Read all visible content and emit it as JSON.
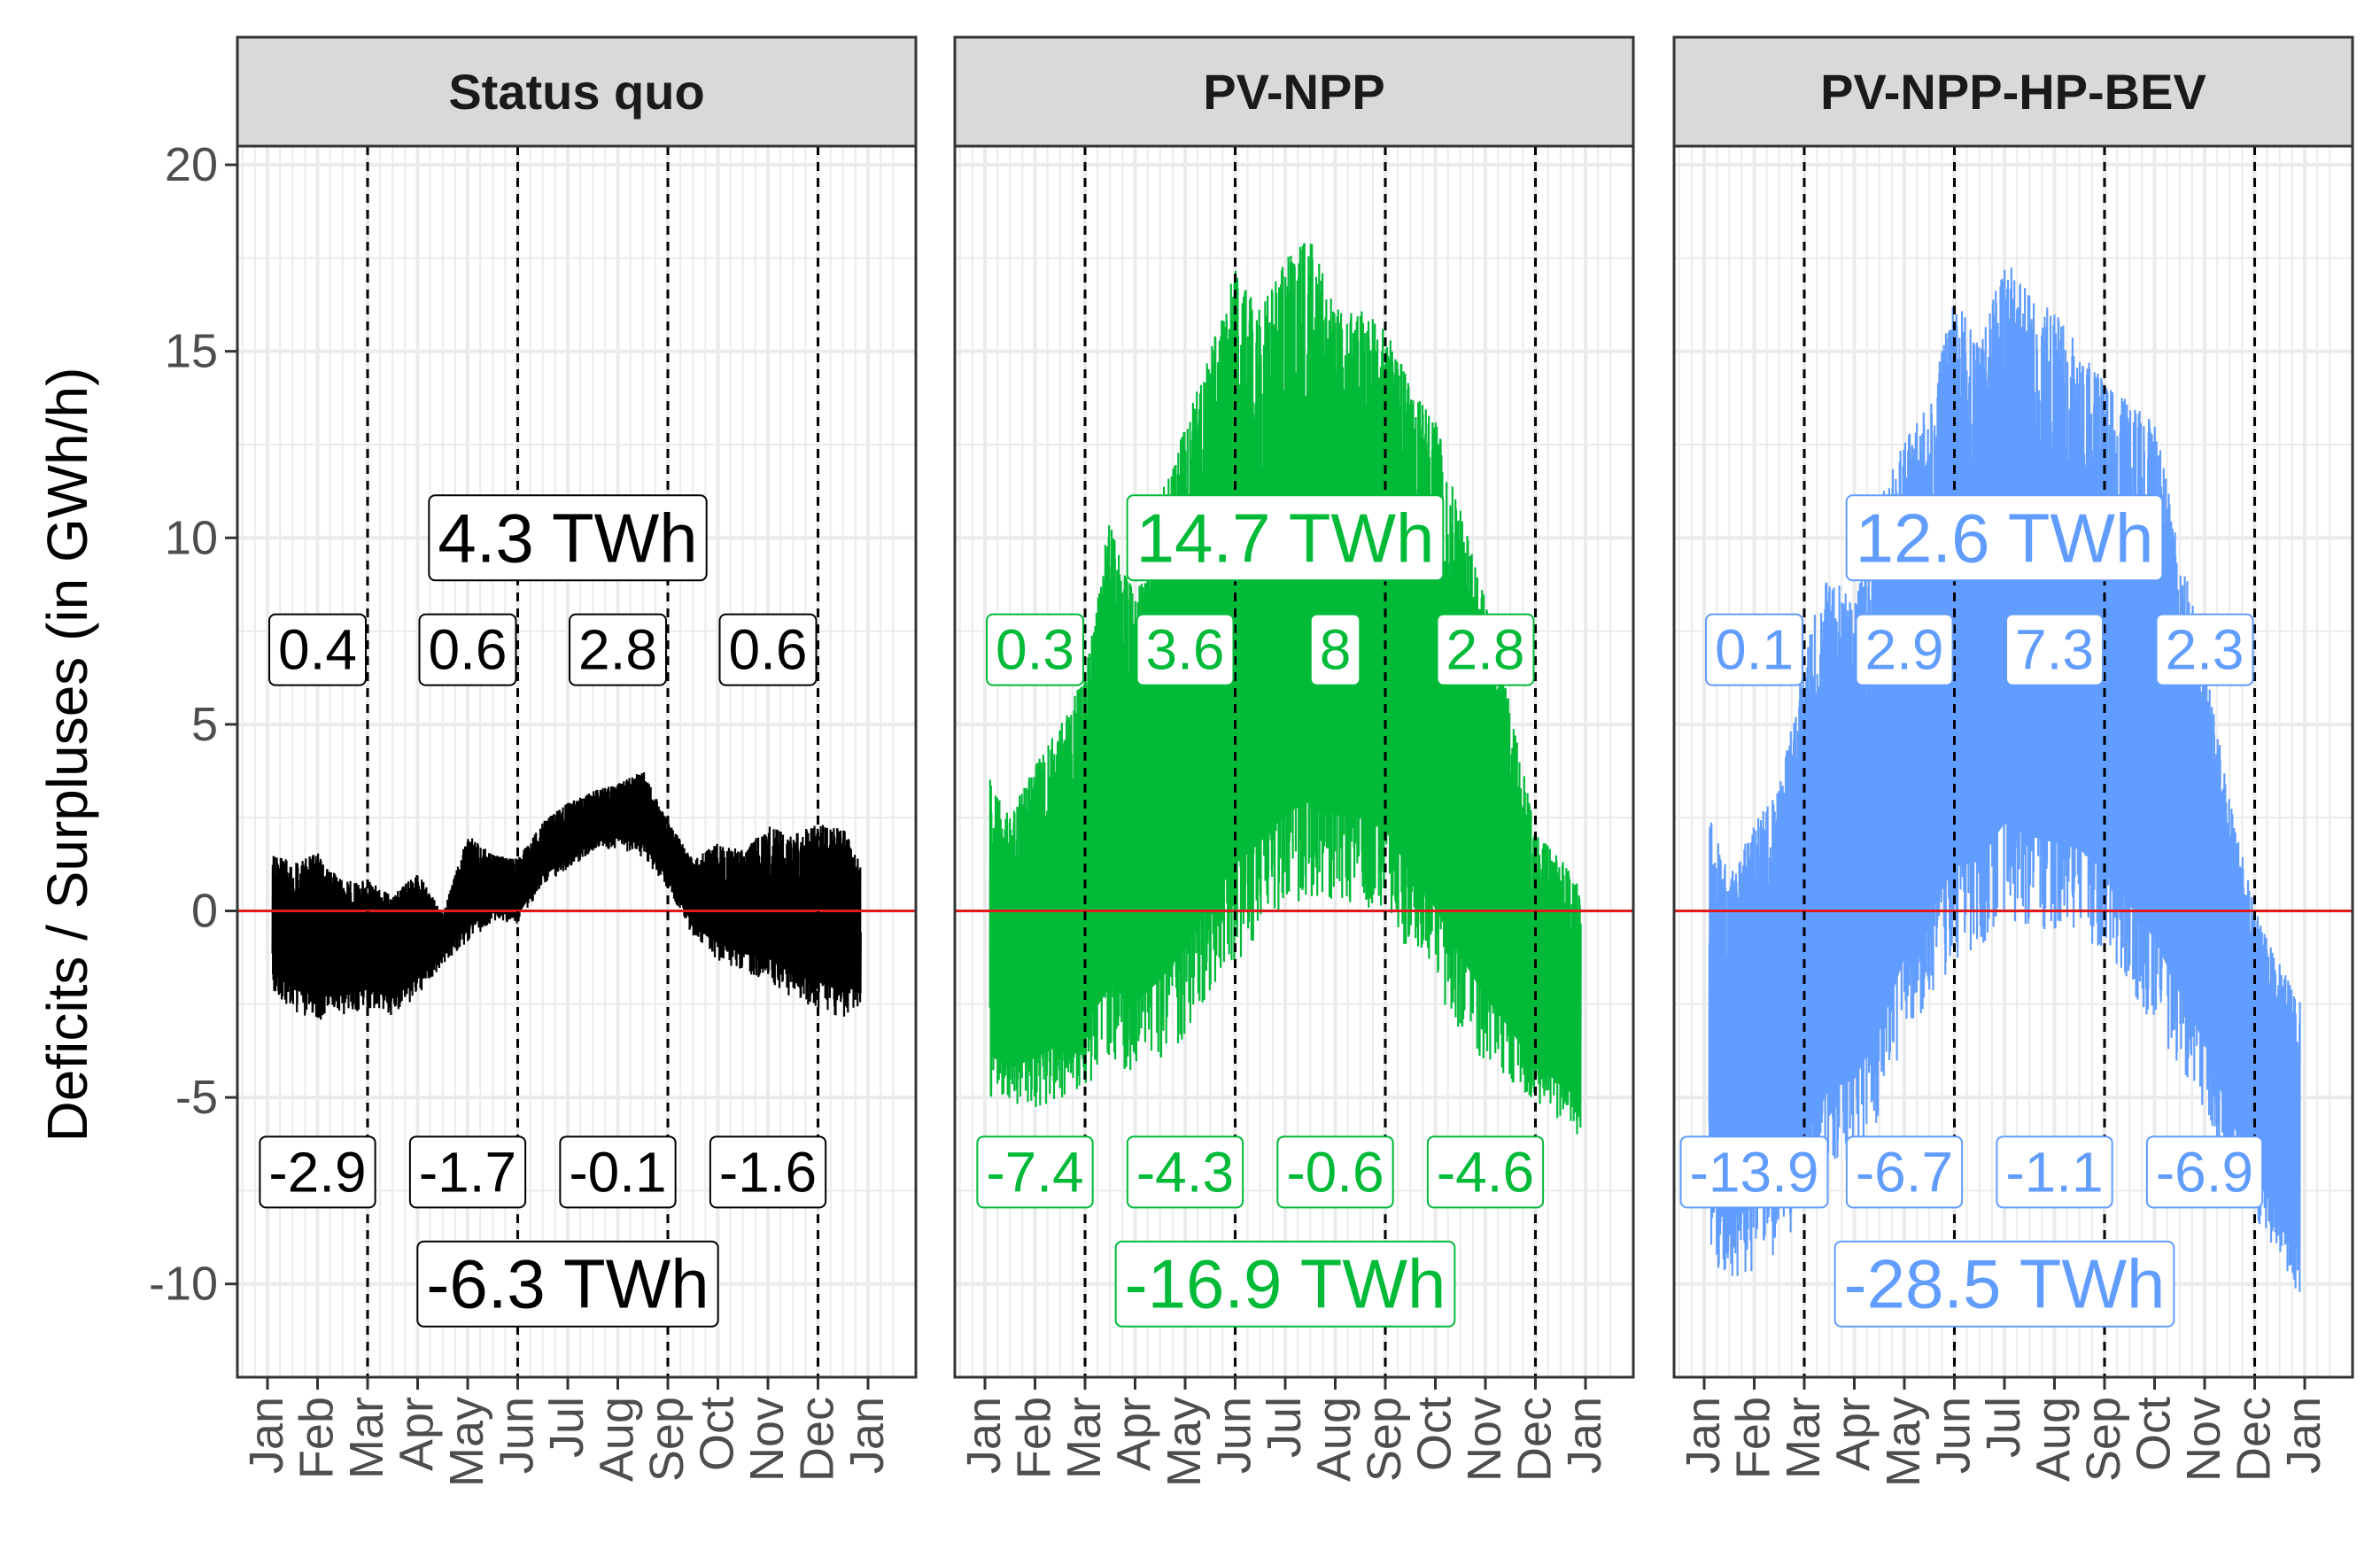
{
  "chart_data": {
    "type": "line",
    "ylabel": "Deficits  / Surpluses (in GWh/h)",
    "xlabel": "",
    "ylim": [
      -12.5,
      20.5
    ],
    "yticks": [
      -10,
      -5,
      0,
      5,
      10,
      15,
      20
    ],
    "x_tick_labels": [
      "Jan",
      "Feb",
      "Mar",
      "Apr",
      "May",
      "Jun",
      "Jul",
      "Aug",
      "Sep",
      "Oct",
      "Nov",
      "Dec",
      "Jan"
    ],
    "season_boundaries": [
      "Mar",
      "Jun",
      "Sep",
      "Dec"
    ],
    "zero_line_color": "#e31a1c",
    "grid": true,
    "facets": [
      {
        "title": "Status quo",
        "color": "#000000",
        "total_surplus_label": "4.3 TWh",
        "total_deficit_label": "-6.3 TWh",
        "season_surplus_labels": [
          "0.4",
          "0.6",
          "2.8",
          "0.6"
        ],
        "season_deficit_labels": [
          "-2.9",
          "-1.7",
          "-0.1",
          "-1.6"
        ],
        "envelope": {
          "months": [
            0.1,
            0.5,
            1,
            1.5,
            2,
            2.5,
            3,
            3.5,
            4,
            4.5,
            5,
            5.5,
            6,
            6.5,
            7,
            7.5,
            8,
            8.5,
            9,
            9.5,
            10,
            10.5,
            11,
            11.5,
            11.85
          ],
          "upper": [
            1.8,
            1.5,
            1.8,
            1.0,
            1.0,
            0.6,
            1.2,
            0.0,
            2.2,
            1.6,
            1.5,
            2.5,
            3.0,
            3.3,
            3.5,
            3.9,
            2.5,
            1.5,
            2.0,
            1.8,
            2.5,
            2.3,
            2.6,
            2.5,
            1.5
          ],
          "lower": [
            -2.4,
            -2.9,
            -3.2,
            -3.0,
            -2.8,
            -3.0,
            -2.5,
            -1.5,
            -1.0,
            -0.4,
            -0.5,
            0.6,
            1.0,
            1.5,
            1.6,
            1.3,
            0.5,
            -0.8,
            -1.5,
            -1.8,
            -2.1,
            -2.6,
            -2.9,
            -3.2,
            -2.7
          ]
        }
      },
      {
        "title": "PV-NPP",
        "color": "#00ba38",
        "total_surplus_label": "14.7 TWh",
        "total_deficit_label": "-16.9 TWh",
        "season_surplus_labels": [
          "0.3",
          "3.6",
          "8",
          "2.8"
        ],
        "season_deficit_labels": [
          "-7.4",
          "-4.3",
          "-0.6",
          "-4.6"
        ],
        "envelope": {
          "months": [
            0.1,
            0.5,
            1,
            1.5,
            2,
            2.5,
            3,
            3.5,
            4,
            4.5,
            5,
            5.5,
            6,
            6.5,
            7,
            7.5,
            8,
            8.5,
            9,
            9.5,
            10,
            10.5,
            11,
            11.5,
            11.9
          ],
          "upper": [
            4.0,
            3.0,
            4.5,
            5.5,
            7.0,
            11.5,
            9.0,
            12.0,
            14.0,
            16.0,
            18.3,
            17.0,
            18.5,
            19.0,
            17.0,
            17.0,
            16.5,
            15.0,
            14.0,
            11.5,
            9.0,
            6.0,
            2.5,
            1.8,
            1.0
          ],
          "lower": [
            -5.6,
            -5.8,
            -5.8,
            -5.6,
            -5.3,
            -5.0,
            -5.0,
            -4.9,
            -4.3,
            -3.3,
            -2.5,
            -1.5,
            -0.9,
            -0.6,
            -0.6,
            -0.7,
            -1.0,
            -2.0,
            -3.0,
            -4.0,
            -4.8,
            -5.2,
            -5.7,
            -6.0,
            -6.5
          ]
        }
      },
      {
        "title": "PV-NPP-HP-BEV",
        "color": "#619cff",
        "total_surplus_label": "12.6 TWh",
        "total_deficit_label": "-28.5 TWh",
        "season_surplus_labels": [
          "0.1",
          "2.9",
          "7.3",
          "2.3"
        ],
        "season_deficit_labels": [
          "-13.9",
          "-6.7",
          "-1.1",
          "-6.9"
        ],
        "envelope": {
          "months": [
            0.1,
            0.5,
            1,
            1.5,
            2,
            2.5,
            3,
            3.5,
            4,
            4.5,
            5,
            5.5,
            6,
            6.5,
            7,
            7.5,
            8,
            8.5,
            9,
            9.5,
            10,
            10.5,
            11,
            11.5,
            11.9
          ],
          "upper": [
            3.2,
            1.5,
            3.0,
            4.0,
            8.0,
            10.0,
            9.0,
            12.0,
            13.5,
            14.5,
            17.5,
            16.0,
            18.5,
            17.5,
            17.0,
            16.0,
            15.0,
            14.5,
            14.0,
            10.5,
            7.5,
            3.5,
            0.5,
            -1.0,
            -2.0
          ],
          "lower": [
            -10.0,
            -10.5,
            -10.3,
            -9.8,
            -9.3,
            -8.0,
            -7.5,
            -6.6,
            -4.5,
            -3.3,
            -2.4,
            -1.9,
            -1.2,
            -1.4,
            -1.5,
            -1.5,
            -2.0,
            -3.0,
            -4.0,
            -5.0,
            -6.0,
            -7.5,
            -8.8,
            -9.8,
            -10.8
          ]
        }
      }
    ]
  }
}
